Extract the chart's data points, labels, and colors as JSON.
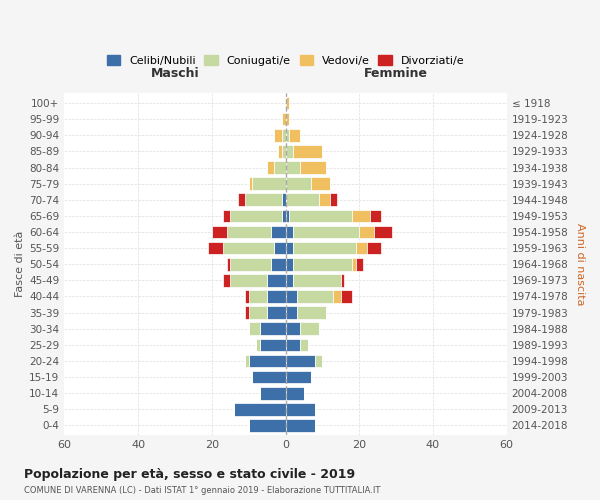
{
  "age_groups": [
    "0-4",
    "5-9",
    "10-14",
    "15-19",
    "20-24",
    "25-29",
    "30-34",
    "35-39",
    "40-44",
    "45-49",
    "50-54",
    "55-59",
    "60-64",
    "65-69",
    "70-74",
    "75-79",
    "80-84",
    "85-89",
    "90-94",
    "95-99",
    "100+"
  ],
  "birth_years": [
    "2014-2018",
    "2009-2013",
    "2004-2008",
    "1999-2003",
    "1994-1998",
    "1989-1993",
    "1984-1988",
    "1979-1983",
    "1974-1978",
    "1969-1973",
    "1964-1968",
    "1959-1963",
    "1954-1958",
    "1949-1953",
    "1944-1948",
    "1939-1943",
    "1934-1938",
    "1929-1933",
    "1924-1928",
    "1919-1923",
    "≤ 1918"
  ],
  "maschi": {
    "celibi": [
      10,
      14,
      7,
      9,
      10,
      7,
      7,
      5,
      5,
      5,
      4,
      3,
      4,
      1,
      1,
      0,
      0,
      0,
      0,
      0,
      0
    ],
    "coniugati": [
      0,
      0,
      0,
      0,
      1,
      1,
      3,
      5,
      5,
      10,
      11,
      14,
      12,
      14,
      10,
      9,
      3,
      1,
      1,
      0,
      0
    ],
    "vedovi": [
      0,
      0,
      0,
      0,
      0,
      0,
      0,
      0,
      0,
      0,
      0,
      0,
      0,
      0,
      0,
      1,
      2,
      1,
      2,
      1,
      0
    ],
    "divorziati": [
      0,
      0,
      0,
      0,
      0,
      0,
      0,
      1,
      1,
      2,
      1,
      4,
      4,
      2,
      2,
      0,
      0,
      0,
      0,
      0,
      0
    ]
  },
  "femmine": {
    "nubili": [
      8,
      8,
      5,
      7,
      8,
      4,
      4,
      3,
      3,
      2,
      2,
      2,
      2,
      1,
      0,
      0,
      0,
      0,
      0,
      0,
      0
    ],
    "coniugate": [
      0,
      0,
      0,
      0,
      2,
      2,
      5,
      8,
      10,
      13,
      16,
      17,
      18,
      17,
      9,
      7,
      4,
      2,
      1,
      0,
      0
    ],
    "vedove": [
      0,
      0,
      0,
      0,
      0,
      0,
      0,
      0,
      2,
      0,
      1,
      3,
      4,
      5,
      3,
      5,
      7,
      8,
      3,
      1,
      1
    ],
    "divorziate": [
      0,
      0,
      0,
      0,
      0,
      0,
      0,
      0,
      3,
      1,
      2,
      4,
      5,
      3,
      2,
      0,
      0,
      0,
      0,
      0,
      0
    ]
  },
  "colors": {
    "celibi": "#3d6fa8",
    "coniugati": "#c5d9a0",
    "vedovi": "#f0c060",
    "divorziati": "#cc2222"
  },
  "legend_labels": [
    "Celibi/Nubili",
    "Coniugati/e",
    "Vedovi/e",
    "Divorziati/e"
  ],
  "title1": "Popolazione per età, sesso e stato civile - 2019",
  "title2": "COMUNE DI VARENNA (LC) - Dati ISTAT 1° gennaio 2019 - Elaborazione TUTTITALIA.IT",
  "xlabel_left": "Maschi",
  "xlabel_right": "Femmine",
  "ylabel_left": "Fasce di età",
  "ylabel_right": "Anni di nascita",
  "xlim": 60,
  "bg_color": "#f5f5f5",
  "plot_bg": "#ffffff"
}
